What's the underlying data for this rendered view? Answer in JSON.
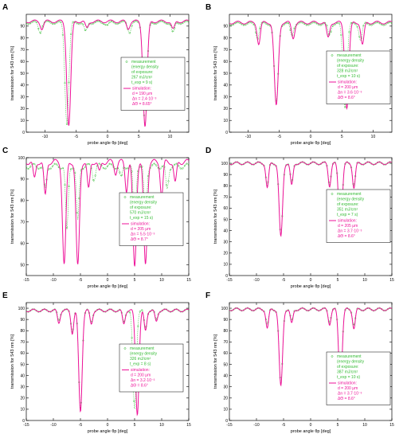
{
  "colors": {
    "measurement": "#33bb33",
    "simulation": "#ee1199",
    "axes": "#000000"
  },
  "chart_data": [
    {
      "type": "line",
      "panel": "A",
      "xlabel": "probe angle θp [deg]",
      "ylabel": "transmission for 543 nm [%]",
      "xlim": [
        -13,
        13
      ],
      "ylim": [
        0,
        100
      ],
      "xticks": [
        "-10",
        "-5",
        "0",
        "5",
        "10"
      ],
      "xtick_values": [
        -10,
        -5,
        0,
        5,
        10
      ],
      "yticks": [
        "0",
        "10",
        "20",
        "30",
        "40",
        "50",
        "60",
        "70",
        "80",
        "90"
      ],
      "ytick_values": [
        0,
        10,
        20,
        30,
        40,
        50,
        60,
        70,
        80,
        90
      ],
      "legend": {
        "measurement": [
          "measurement",
          "(energy density",
          "of exposure:",
          "267 mJ/cm²",
          "t_exp = 9 s)"
        ],
        "simulation": [
          "simulation:",
          "d = 190 μm",
          "Δn = 2.4·10⁻³",
          "ΔΘ = 8.65°"
        ]
      },
      "series": [
        {
          "name": "measurement",
          "role": "measurement",
          "dips": [
            [
              -10.8,
              85
            ],
            [
              -6.5,
              8
            ],
            [
              -3.5,
              85
            ],
            [
              0,
              91
            ],
            [
              3.5,
              85
            ],
            [
              6.0,
              6
            ],
            [
              10.5,
              84
            ]
          ],
          "baseline": 93
        },
        {
          "name": "simulation",
          "role": "simulation",
          "dips": [
            [
              -10.5,
              88
            ],
            [
              -6.2,
              6
            ],
            [
              -3.3,
              88
            ],
            [
              3.3,
              88
            ],
            [
              6.0,
              5
            ],
            [
              10.5,
              87
            ]
          ],
          "baseline": 94
        }
      ]
    },
    {
      "type": "line",
      "panel": "B",
      "xlabel": "probe angle θp [deg]",
      "ylabel": "transmission for 543 nm [%]",
      "xlim": [
        -13,
        13
      ],
      "ylim": [
        0,
        100
      ],
      "xticks": [
        "-10",
        "-5",
        "0",
        "5",
        "10"
      ],
      "xtick_values": [
        -10,
        -5,
        0,
        5,
        10
      ],
      "yticks": [
        "0",
        "10",
        "20",
        "30",
        "40",
        "50",
        "60",
        "70",
        "80",
        "90"
      ],
      "ytick_values": [
        0,
        10,
        20,
        30,
        40,
        50,
        60,
        70,
        80,
        90
      ],
      "legend": {
        "measurement": [
          "measurement",
          "(energy density",
          "of exposure:",
          "328 mJ/cm²",
          "t_exp = 10 s)"
        ],
        "simulation": [
          "simulation:",
          "d = 200 μm",
          "Δn = 3.6·10⁻³",
          "ΔΘ = 8.6°"
        ]
      },
      "series": [
        {
          "name": "measurement",
          "role": "measurement",
          "dips": [
            [
              -8.5,
              80
            ],
            [
              -5.5,
              25
            ],
            [
              -3.0,
              82
            ],
            [
              3.0,
              82
            ],
            [
              5.5,
              22
            ],
            [
              8.0,
              78
            ]
          ],
          "baseline": 92
        },
        {
          "name": "simulation",
          "role": "simulation",
          "dips": [
            [
              -8.3,
              75
            ],
            [
              -5.5,
              22
            ],
            [
              -2.8,
              80
            ],
            [
              2.8,
              80
            ],
            [
              5.8,
              21
            ],
            [
              8.3,
              74
            ]
          ],
          "baseline": 93
        }
      ]
    },
    {
      "type": "line",
      "panel": "C",
      "xlabel": "probe angle θp [deg]",
      "ylabel": "transmission for 543 nm [%]",
      "xlim": [
        -15,
        15
      ],
      "ylim": [
        45,
        100
      ],
      "xticks": [
        "-15",
        "-10",
        "-5",
        "0",
        "5",
        "10",
        "15"
      ],
      "xtick_values": [
        -15,
        -10,
        -5,
        0,
        5,
        10,
        15
      ],
      "yticks": [
        "50",
        "60",
        "70",
        "80",
        "90",
        "100"
      ],
      "ytick_values": [
        50,
        60,
        70,
        80,
        90,
        100
      ],
      "legend": {
        "measurement": [
          "measurement",
          "(energy density",
          "of exposure:",
          "570 mJ/cm²",
          "t_exp = 15 s)"
        ],
        "simulation": [
          "simulation:",
          "d = 205 μm",
          "Δn = 5.5·10⁻³",
          "ΔΘ = 8.7°"
        ]
      },
      "series": [
        {
          "name": "measurement",
          "role": "measurement",
          "dips": [
            [
              -11.5,
              85
            ],
            [
              -7.5,
              66
            ],
            [
              -5.5,
              70
            ],
            [
              -2.5,
              90
            ],
            [
              2.5,
              90
            ],
            [
              5.0,
              68
            ],
            [
              7.0,
              70
            ],
            [
              11.0,
              85
            ]
          ],
          "baseline": 96
        },
        {
          "name": "simulation",
          "role": "simulation",
          "dips": [
            [
              -13.5,
              90
            ],
            [
              -11.5,
              82
            ],
            [
              -8.0,
              50
            ],
            [
              -5.5,
              49
            ],
            [
              -3.5,
              85
            ],
            [
              -1.5,
              93
            ],
            [
              1.5,
              93
            ],
            [
              3.5,
              85
            ],
            [
              5.0,
              49
            ],
            [
              7.0,
              50
            ],
            [
              10.0,
              82
            ],
            [
              12.5,
              88
            ]
          ],
          "baseline": 98
        }
      ]
    },
    {
      "type": "line",
      "panel": "D",
      "xlabel": "probe angle θp [deg]",
      "ylabel": "transmission for 543 nm [%]",
      "xlim": [
        -15,
        15
      ],
      "ylim": [
        0,
        105
      ],
      "xticks": [
        "-15",
        "-10",
        "-5",
        "0",
        "5",
        "10",
        "15"
      ],
      "xtick_values": [
        -15,
        -10,
        -5,
        0,
        5,
        10,
        15
      ],
      "yticks": [
        "0",
        "10",
        "20",
        "30",
        "40",
        "50",
        "60",
        "70",
        "80",
        "90",
        "100"
      ],
      "ytick_values": [
        0,
        10,
        20,
        30,
        40,
        50,
        60,
        70,
        80,
        90,
        100
      ],
      "legend": {
        "measurement": [
          "measurement",
          "(energy density",
          "of exposure:",
          "351 mJ/cm²",
          "t_exp = 7 s)"
        ],
        "simulation": [
          "simulation:",
          "d = 205 μm",
          "Δn = 3.7·10⁻³",
          "ΔΘ = 8.6°"
        ]
      },
      "series": [
        {
          "name": "measurement",
          "role": "measurement",
          "dips": [
            [
              -8.0,
              80
            ],
            [
              -5.5,
              35
            ],
            [
              -3.5,
              82
            ],
            [
              3.5,
              82
            ],
            [
              5.5,
              35
            ],
            [
              8.0,
              80
            ]
          ],
          "baseline": 100
        },
        {
          "name": "simulation",
          "role": "simulation",
          "dips": [
            [
              -8.0,
              78
            ],
            [
              -5.5,
              34
            ],
            [
              -3.5,
              80
            ],
            [
              3.5,
              80
            ],
            [
              5.5,
              34
            ],
            [
              8.0,
              78
            ]
          ],
          "baseline": 100
        }
      ]
    },
    {
      "type": "line",
      "panel": "E",
      "xlabel": "probe angle θp [deg]",
      "ylabel": "transmission for 543 nm [%]",
      "xlim": [
        -15,
        15
      ],
      "ylim": [
        0,
        105
      ],
      "xticks": [
        "-15",
        "-10",
        "-5",
        "0",
        "5",
        "10",
        "15"
      ],
      "xtick_values": [
        -15,
        -10,
        -5,
        0,
        5,
        10,
        15
      ],
      "yticks": [
        "0",
        "10",
        "20",
        "30",
        "40",
        "50",
        "60",
        "70",
        "80",
        "90",
        "100"
      ],
      "ytick_values": [
        0,
        10,
        20,
        30,
        40,
        50,
        60,
        70,
        80,
        90,
        100
      ],
      "legend": {
        "measurement": [
          "measurement",
          "(energy density",
          "326 mJ/cm²",
          "t_exp = 8 s)"
        ],
        "simulation": [
          "simulation:",
          "d = 200 μm",
          "Δn = 3.2·10⁻³",
          "ΔΘ = 8.6°"
        ]
      },
      "series": [
        {
          "name": "measurement",
          "role": "measurement",
          "dips": [
            [
              -9.0,
              90
            ],
            [
              -6.5,
              80
            ],
            [
              -5.0,
              10
            ],
            [
              -3.0,
              88
            ],
            [
              3.0,
              88
            ],
            [
              5.0,
              10
            ],
            [
              7.0,
              82
            ],
            [
              9.0,
              90
            ]
          ],
          "baseline": 98
        },
        {
          "name": "simulation",
          "role": "simulation",
          "dips": [
            [
              -9.0,
              87
            ],
            [
              -6.5,
              78
            ],
            [
              -5.0,
              8
            ],
            [
              -3.0,
              86
            ],
            [
              3.0,
              86
            ],
            [
              5.5,
              6
            ],
            [
              7.0,
              80
            ],
            [
              9.0,
              88
            ]
          ],
          "baseline": 98
        }
      ]
    },
    {
      "type": "line",
      "panel": "F",
      "xlabel": "probe angle θp [deg]",
      "ylabel": "transmission for 543 nm [%]",
      "xlim": [
        -15,
        15
      ],
      "ylim": [
        0,
        105
      ],
      "xticks": [
        "-15",
        "-10",
        "-5",
        "0",
        "5",
        "10",
        "15"
      ],
      "xtick_values": [
        -15,
        -10,
        -5,
        0,
        5,
        10,
        15
      ],
      "yticks": [
        "0",
        "10",
        "20",
        "30",
        "40",
        "50",
        "60",
        "70",
        "80",
        "90",
        "100"
      ],
      "ytick_values": [
        0,
        10,
        20,
        30,
        40,
        50,
        60,
        70,
        80,
        90,
        100
      ],
      "legend": {
        "measurement": [
          "measurement",
          "(energy density",
          "of exposure:",
          "387 mJ/cm²",
          "t_exp = 10 s)"
        ],
        "simulation": [
          "simulation:",
          "d = 200 μm",
          "Δn = 3.7·10⁻³",
          "ΔΘ = 8.6°"
        ]
      },
      "series": [
        {
          "name": "measurement",
          "role": "measurement",
          "dips": [
            [
              -8.0,
              85
            ],
            [
              -5.5,
              32
            ],
            [
              -3.5,
              88
            ],
            [
              3.5,
              88
            ],
            [
              5.5,
              32
            ],
            [
              8.0,
              85
            ]
          ],
          "baseline": 99
        },
        {
          "name": "simulation",
          "role": "simulation",
          "dips": [
            [
              -8.0,
              82
            ],
            [
              -5.5,
              30
            ],
            [
              -3.5,
              86
            ],
            [
              3.5,
              86
            ],
            [
              5.5,
              30
            ],
            [
              8.0,
              82
            ]
          ],
          "baseline": 99
        }
      ]
    }
  ]
}
